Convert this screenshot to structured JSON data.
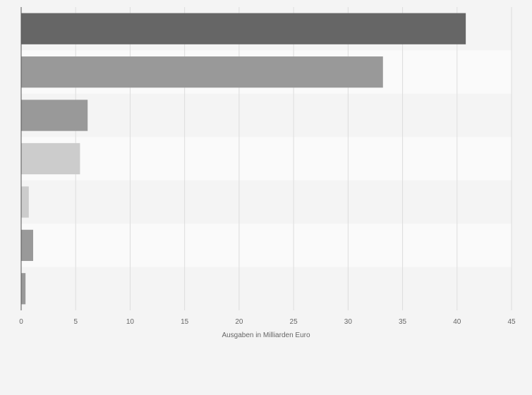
{
  "chart_data": {
    "type": "bar",
    "orientation": "horizontal",
    "title": "",
    "xlabel": "Ausgaben in Milliarden Euro",
    "ylabel": "",
    "xlim": [
      0,
      45
    ],
    "xticks": [
      "0",
      "5",
      "10",
      "15",
      "20",
      "25",
      "30",
      "35",
      "40",
      "45"
    ],
    "categories": [
      "",
      "",
      "",
      "",
      "",
      "",
      ""
    ],
    "values": [
      40.8,
      33.2,
      6.1,
      5.4,
      0.7,
      1.1,
      0.4
    ],
    "bar_colors": [
      "#666666",
      "#999999",
      "#999999",
      "#cccccc",
      "#cccccc",
      "#999999",
      "#999999"
    ],
    "grid": true,
    "legend": "none"
  }
}
